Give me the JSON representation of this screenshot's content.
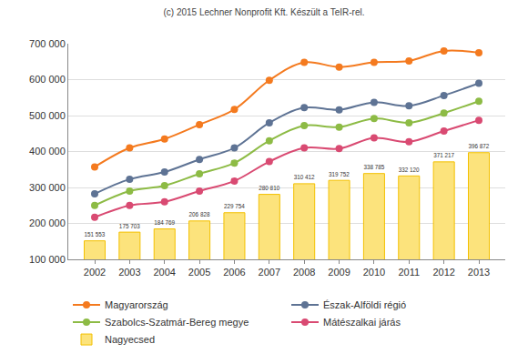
{
  "chart_data": {
    "type": "combo",
    "title": "(c) 2015 Lechner Nonprofit Kft. Készült a TeIR-rel.",
    "categories": [
      "2002",
      "2003",
      "2004",
      "2005",
      "2006",
      "2007",
      "2008",
      "2009",
      "2010",
      "2011",
      "2012",
      "2013"
    ],
    "series": [
      {
        "name": "Magyarország",
        "type": "line",
        "marker": "circle",
        "color": "#f47a1f",
        "values": [
          357000,
          410000,
          435000,
          475000,
          517000,
          598000,
          648000,
          635000,
          648000,
          652000,
          680000,
          675000
        ]
      },
      {
        "name": "Észak-Alföldi régió",
        "type": "line",
        "marker": "circle",
        "color": "#5e7394",
        "values": [
          282000,
          323000,
          343000,
          378000,
          410000,
          480000,
          522000,
          516000,
          537000,
          527000,
          556000,
          590000
        ]
      },
      {
        "name": "Szabolcs-Szatmár-Bereg megye",
        "type": "line",
        "marker": "circle",
        "color": "#8dbb45",
        "values": [
          250000,
          290000,
          305000,
          338000,
          368000,
          430000,
          472000,
          468000,
          492000,
          480000,
          507000,
          540000
        ]
      },
      {
        "name": "Mátészalkai járás",
        "type": "line",
        "marker": "circle",
        "color": "#d94a72",
        "values": [
          217000,
          250000,
          260000,
          290000,
          318000,
          372000,
          410000,
          408000,
          438000,
          427000,
          457000,
          487000
        ]
      },
      {
        "name": "Nagyecsed",
        "type": "bar",
        "color": "#fce37c",
        "values": [
          151553,
          175703,
          184769,
          206828,
          229754,
          280810,
          310412,
          319752,
          338785,
          332120,
          371217,
          396872
        ],
        "value_labels": [
          "151 553",
          "175 703",
          "184 769",
          "206 828",
          "229 754",
          "280 810",
          "310 412",
          "319 752",
          "338 785",
          "332 120",
          "371 217",
          "396 872"
        ]
      }
    ],
    "ylim": [
      100000,
      700000
    ],
    "yticks": [
      {
        "value": 100000,
        "label": "100 000"
      },
      {
        "value": 200000,
        "label": "200 000"
      },
      {
        "value": 300000,
        "label": "300 000"
      },
      {
        "value": 400000,
        "label": "400 000"
      },
      {
        "value": 500000,
        "label": "500 000"
      },
      {
        "value": 600000,
        "label": "600 000"
      },
      {
        "value": 700000,
        "label": "700 000"
      }
    ],
    "grid": true,
    "legend": "bottom",
    "data_labels": true
  }
}
